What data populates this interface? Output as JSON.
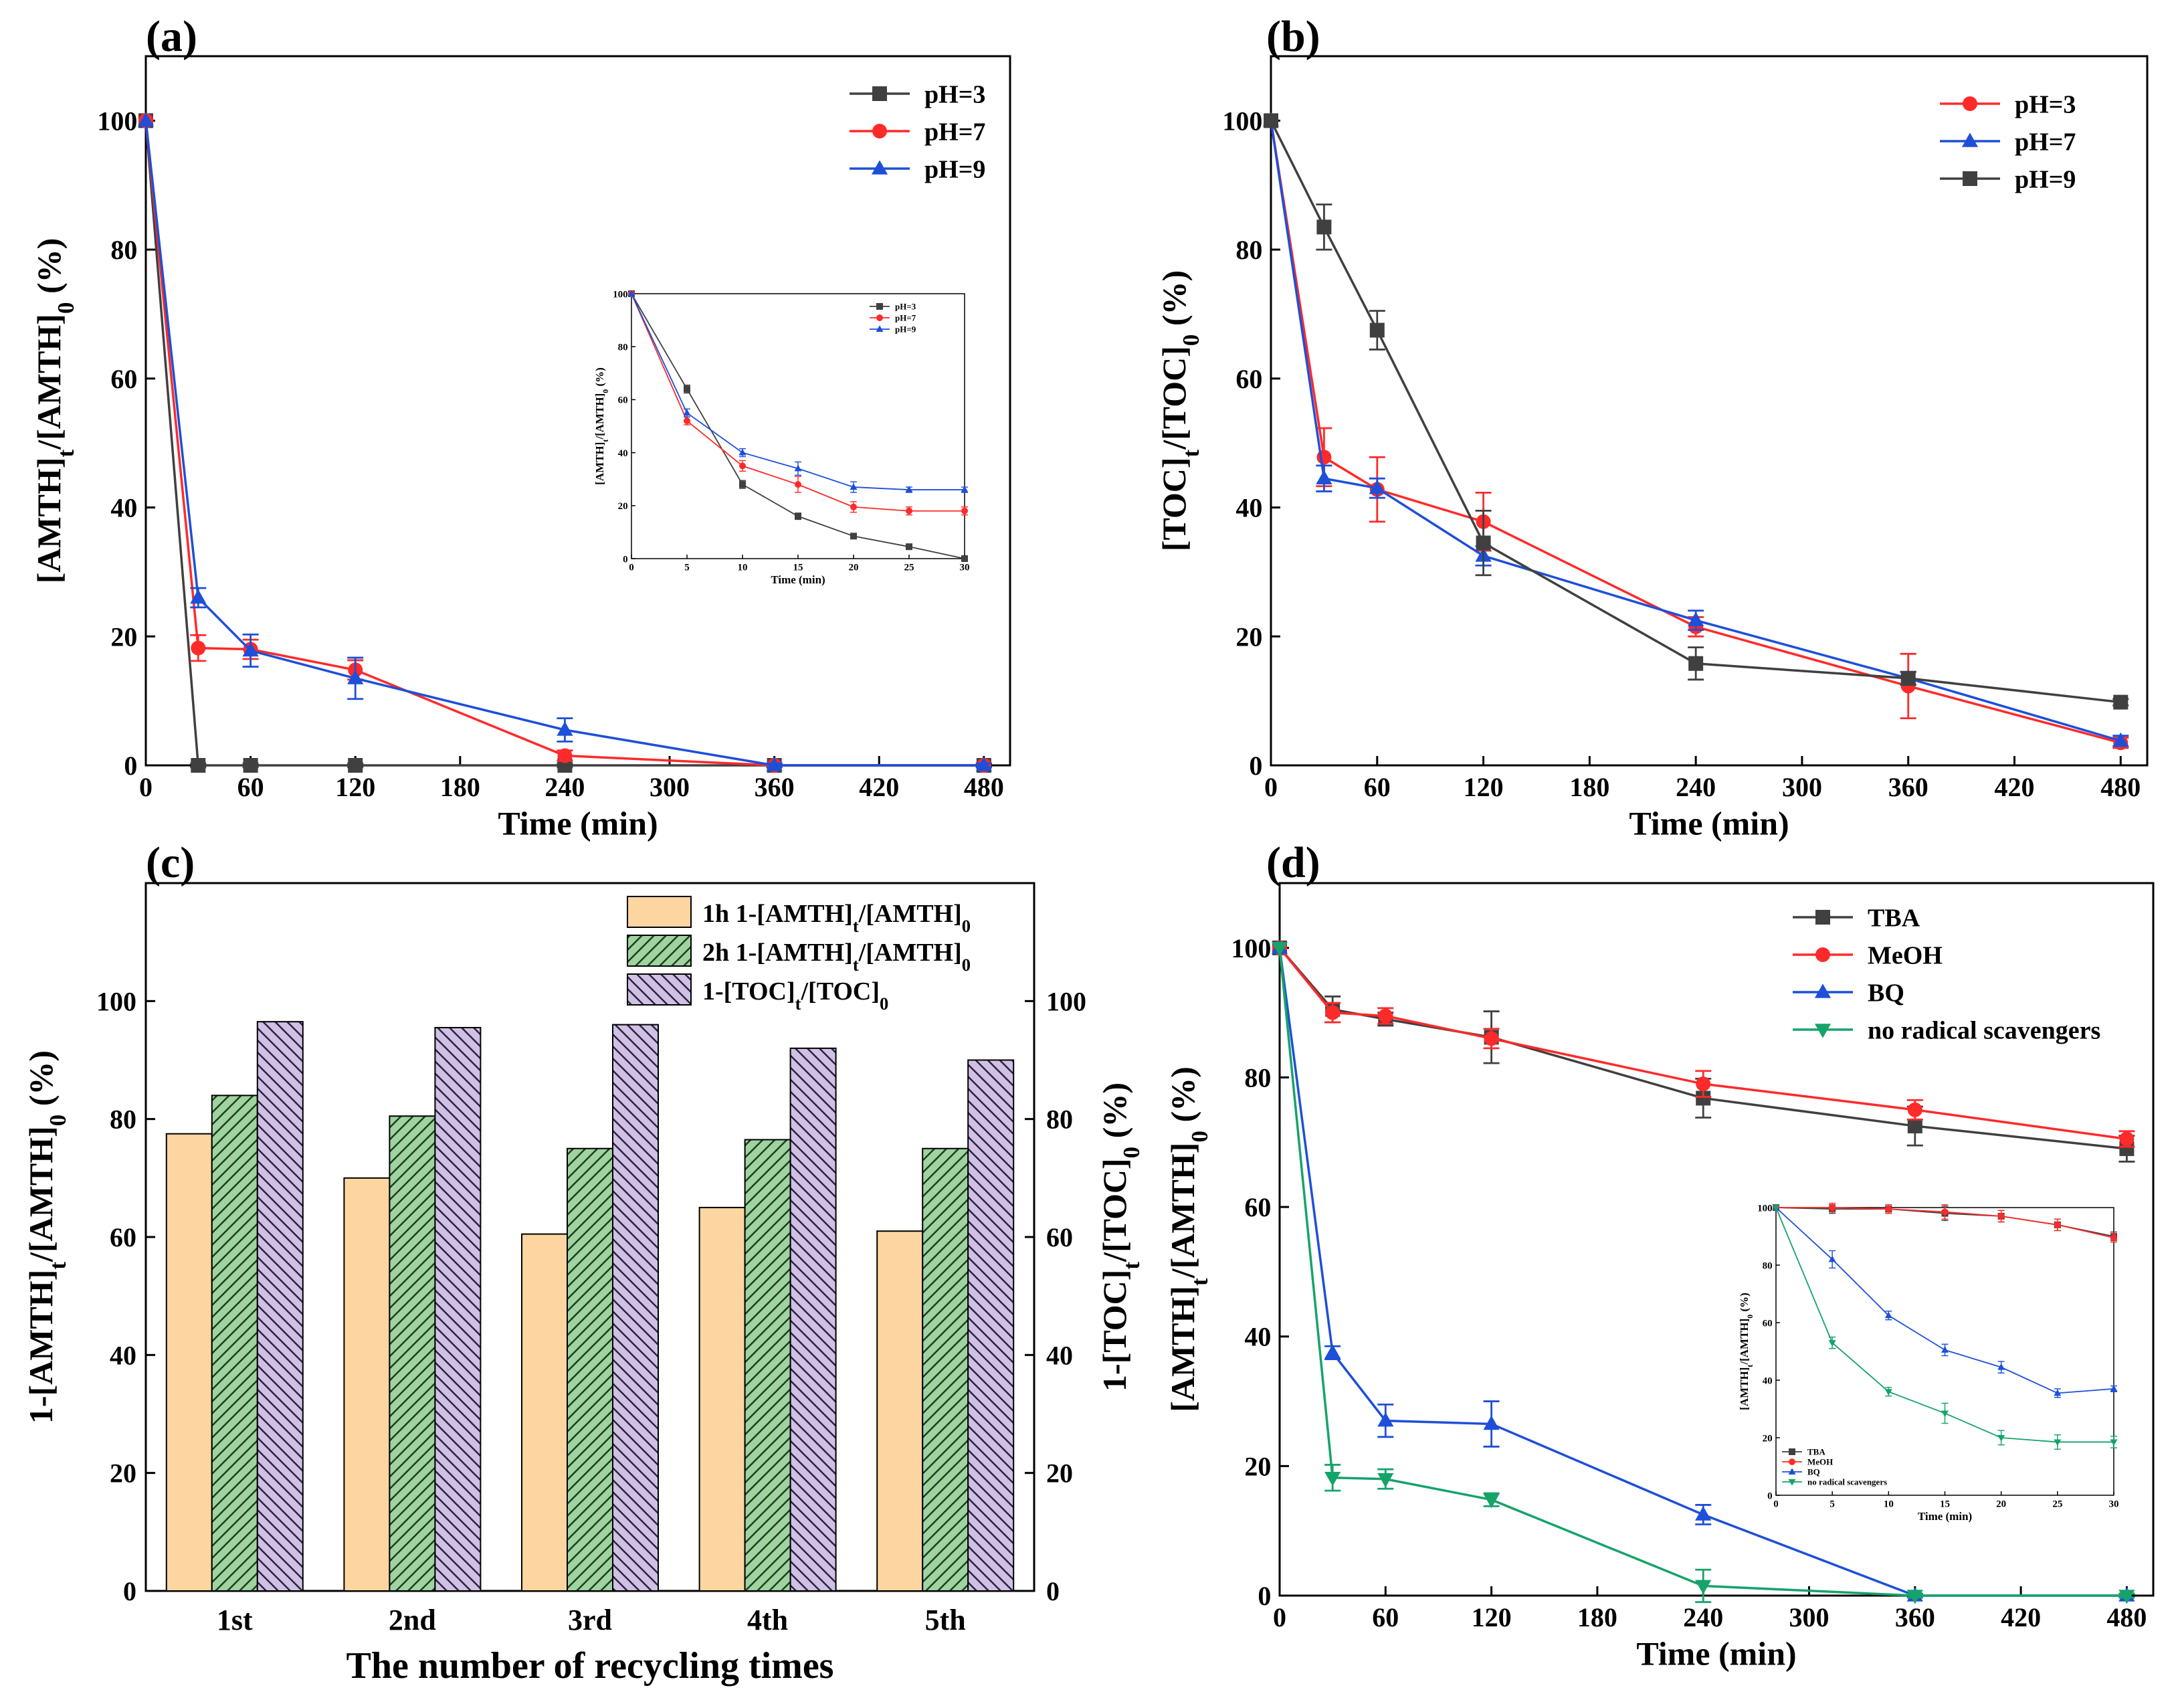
{
  "chart_data": [
    {
      "id": "a",
      "panel_label": "(a)",
      "type": "line",
      "xlabel": "Time (min)",
      "ylabel": "[AMTH]t/[AMTH]0 (%)",
      "xlim": [
        0,
        495
      ],
      "ylim": [
        0,
        110
      ],
      "xticks": [
        0,
        60,
        120,
        180,
        240,
        300,
        360,
        420,
        480
      ],
      "yticks": [
        0,
        20,
        40,
        60,
        80,
        100
      ],
      "legend_position": "top-right",
      "series": [
        {
          "name": "pH=3",
          "color": "#404040",
          "marker": "square",
          "x": [
            0,
            30,
            60,
            120,
            240,
            360,
            480
          ],
          "y": [
            100,
            0,
            0,
            0,
            0,
            0,
            0
          ],
          "err": [
            0,
            0.3,
            0.3,
            0.3,
            0.3,
            0.3,
            0.3
          ]
        },
        {
          "name": "pH=7",
          "color": "#ff2a2a",
          "marker": "circle",
          "x": [
            0,
            30,
            60,
            120,
            240,
            360,
            480
          ],
          "y": [
            100,
            18.2,
            18,
            14.8,
            1.5,
            0,
            0
          ],
          "err": [
            0,
            2,
            1.5,
            1.5,
            0.8,
            0.3,
            0.3
          ]
        },
        {
          "name": "pH=9",
          "color": "#1e4fd8",
          "marker": "triangle",
          "x": [
            0,
            30,
            60,
            120,
            240,
            360,
            480
          ],
          "y": [
            100,
            26,
            17.8,
            13.5,
            5.5,
            0,
            0
          ],
          "err": [
            0,
            1.5,
            2.5,
            3.2,
            1.8,
            0.3,
            0.3
          ]
        }
      ],
      "inset": {
        "xlabel": "Time (min)",
        "ylabel": "[AMTH]t/[AMTH]0 (%)",
        "xlim": [
          0,
          30
        ],
        "ylim": [
          0,
          100
        ],
        "xticks": [
          0,
          5,
          10,
          15,
          20,
          25,
          30
        ],
        "yticks": [
          0,
          20,
          40,
          60,
          80,
          100
        ],
        "legend_position": "top-right",
        "series": [
          {
            "name": "pH=3",
            "color": "#404040",
            "marker": "square",
            "x": [
              0,
              5,
              10,
              15,
              20,
              25,
              30
            ],
            "y": [
              100,
              64,
              28,
              16,
              8.5,
              4.5,
              0
            ],
            "err": [
              0,
              1.5,
              1.5,
              1.2,
              0.8,
              0.5,
              0
            ]
          },
          {
            "name": "pH=7",
            "color": "#ff2a2a",
            "marker": "circle",
            "x": [
              0,
              5,
              10,
              15,
              20,
              25,
              30
            ],
            "y": [
              100,
              52,
              35,
              28,
              19.5,
              18,
              18
            ],
            "err": [
              0,
              1.5,
              2,
              3,
              2,
              1.5,
              1.5
            ]
          },
          {
            "name": "pH=9",
            "color": "#1e4fd8",
            "marker": "triangle",
            "x": [
              0,
              5,
              10,
              15,
              20,
              25,
              30
            ],
            "y": [
              100,
              55,
              40,
              34,
              27,
              26,
              26
            ],
            "err": [
              0,
              1.5,
              1.5,
              2.5,
              2,
              1,
              1
            ]
          }
        ]
      }
    },
    {
      "id": "b",
      "panel_label": "(b)",
      "type": "line",
      "xlabel": "Time (min)",
      "ylabel": "[TOC]t/[TOC]0 (%)",
      "xlim": [
        0,
        495
      ],
      "ylim": [
        0,
        110
      ],
      "xticks": [
        0,
        60,
        120,
        180,
        240,
        300,
        360,
        420,
        480
      ],
      "yticks": [
        0,
        20,
        40,
        60,
        80,
        100
      ],
      "legend_position": "top-right",
      "series": [
        {
          "name": "pH=3",
          "color": "#ff2a2a",
          "marker": "circle",
          "x": [
            0,
            30,
            60,
            120,
            240,
            360,
            480
          ],
          "y": [
            100,
            47.8,
            42.8,
            37.8,
            21.5,
            12.3,
            3.5
          ],
          "err": [
            0,
            4.5,
            5,
            4.5,
            1.5,
            5,
            0.8
          ]
        },
        {
          "name": "pH=7",
          "color": "#1e4fd8",
          "marker": "triangle",
          "x": [
            0,
            30,
            60,
            120,
            240,
            360,
            480
          ],
          "y": [
            100,
            44.5,
            43,
            32.5,
            22.5,
            13.5,
            3.8
          ],
          "err": [
            0,
            2,
            1.5,
            1.5,
            1.5,
            1,
            0.8
          ]
        },
        {
          "name": "pH=9",
          "color": "#404040",
          "marker": "square",
          "x": [
            0,
            30,
            60,
            120,
            240,
            360,
            480
          ],
          "y": [
            100,
            83.5,
            67.5,
            34.5,
            15.8,
            13.5,
            9.8
          ],
          "err": [
            0,
            3.5,
            3,
            5,
            2.5,
            1,
            0.5
          ]
        }
      ]
    },
    {
      "id": "c",
      "panel_label": "(c)",
      "type": "bar",
      "xlabel": "The number of recycling times",
      "ylabel": "1-[AMTH]t/[AMTH]0 (%)",
      "y2label": "1-[TOC]t/[TOC]0 (%)",
      "categories": [
        "1st",
        "2nd",
        "3rd",
        "4th",
        "5th"
      ],
      "ylim": [
        0,
        120
      ],
      "yticks": [
        0,
        20,
        40,
        60,
        80,
        100
      ],
      "legend_position": "top-right",
      "series": [
        {
          "name": "1h 1-[AMTH]t/[AMTH]0",
          "color": "#fdd5a0",
          "hatch": "none",
          "values": [
            77.5,
            70,
            60.5,
            65,
            61
          ]
        },
        {
          "name": "2h 1-[AMTH]t/[AMTH]0",
          "color": "#9fd3a0",
          "hatch": "forward",
          "values": [
            84,
            80.5,
            75,
            76.5,
            75
          ]
        },
        {
          "name": "1-[TOC]t/[TOC]0",
          "color": "#cfc0e4",
          "hatch": "backward",
          "values": [
            96.5,
            95.5,
            96,
            92,
            90
          ]
        }
      ]
    },
    {
      "id": "d",
      "panel_label": "(d)",
      "type": "line",
      "xlabel": "Time (min)",
      "ylabel": "[AMTH]t/[AMTH]0 (%)",
      "xlim": [
        0,
        495
      ],
      "ylim": [
        0,
        110
      ],
      "xticks": [
        0,
        60,
        120,
        180,
        240,
        300,
        360,
        420,
        480
      ],
      "yticks": [
        0,
        20,
        40,
        60,
        80,
        100
      ],
      "legend_position": "top-right",
      "series": [
        {
          "name": "TBA",
          "color": "#404040",
          "marker": "square",
          "x": [
            0,
            30,
            60,
            120,
            240,
            360,
            480
          ],
          "y": [
            100,
            90.5,
            89,
            86.2,
            76.8,
            72.5,
            69
          ],
          "err": [
            0,
            2,
            1,
            4,
            3,
            3,
            2
          ]
        },
        {
          "name": "MeOH",
          "color": "#ff2a2a",
          "marker": "circle",
          "x": [
            0,
            30,
            60,
            120,
            240,
            360,
            480
          ],
          "y": [
            100,
            90,
            89.5,
            86,
            79,
            75,
            70.5
          ],
          "err": [
            0,
            1.5,
            1.2,
            1.5,
            2,
            1.5,
            1.2
          ]
        },
        {
          "name": "BQ",
          "color": "#1e4fd8",
          "marker": "triangle",
          "x": [
            0,
            30,
            60,
            120,
            240,
            360,
            480
          ],
          "y": [
            100,
            37.5,
            27,
            26.5,
            12.5,
            0,
            0
          ],
          "err": [
            0,
            1,
            2.5,
            3.5,
            1.5,
            0.3,
            0.3
          ]
        },
        {
          "name": "no radical scavengers",
          "color": "#16a36a",
          "marker": "triangle-down",
          "x": [
            0,
            30,
            60,
            120,
            240,
            360,
            480
          ],
          "y": [
            100,
            18.2,
            18,
            14.8,
            1.5,
            0,
            0
          ],
          "err": [
            0,
            2,
            1.5,
            1,
            2.5,
            0.3,
            0.3
          ]
        }
      ],
      "inset": {
        "xlabel": "Time (min)",
        "ylabel": "[AMTH]t/[AMTH]0 (%)",
        "xlim": [
          0,
          30
        ],
        "ylim": [
          0,
          100
        ],
        "xticks": [
          0,
          5,
          10,
          15,
          20,
          25,
          30
        ],
        "yticks": [
          0,
          20,
          40,
          60,
          80,
          100
        ],
        "legend_position": "bottom-left",
        "series": [
          {
            "name": "TBA",
            "color": "#404040",
            "marker": "square",
            "x": [
              0,
              5,
              10,
              15,
              20,
              25,
              30
            ],
            "y": [
              100,
              99.5,
              99.5,
              98,
              97,
              94,
              90
            ],
            "err": [
              0,
              1.5,
              1.5,
              2.5,
              2,
              2,
              1.5
            ]
          },
          {
            "name": "MeOH",
            "color": "#ff2a2a",
            "marker": "circle",
            "x": [
              0,
              5,
              10,
              15,
              20,
              25,
              30
            ],
            "y": [
              100,
              100,
              99.5,
              98.5,
              97,
              94,
              89.5
            ],
            "err": [
              0,
              1.5,
              1.5,
              2.5,
              2,
              2,
              1.5
            ]
          },
          {
            "name": "BQ",
            "color": "#1e4fd8",
            "marker": "triangle",
            "x": [
              0,
              5,
              10,
              15,
              20,
              25,
              30
            ],
            "y": [
              100,
              82,
              62.5,
              50.5,
              44.5,
              35.5,
              37
            ],
            "err": [
              0,
              3,
              1.5,
              2,
              2,
              1.5,
              1
            ]
          },
          {
            "name": "no radical scavengers",
            "color": "#16a36a",
            "marker": "triangle-down",
            "x": [
              0,
              5,
              10,
              15,
              20,
              25,
              30
            ],
            "y": [
              100,
              53,
              36,
              28.5,
              20,
              18.5,
              18.5
            ],
            "err": [
              0,
              2,
              1.5,
              3.5,
              2.5,
              2.5,
              2
            ]
          }
        ]
      }
    }
  ]
}
